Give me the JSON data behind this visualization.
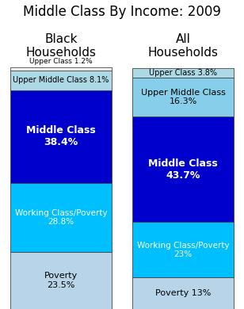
{
  "title": "Middle Class By Income: 2009",
  "col1_label": "Black\nHouseholds",
  "col2_label": "All\nHouseholds",
  "col1_segments": [
    {
      "label": "Poverty\n23.5%",
      "value": 23.5,
      "color": "#b8d4e8",
      "text_color": "#000000",
      "fontsize": 8,
      "bold": false
    },
    {
      "label": "Working Class/Poverty\n28.8%",
      "value": 28.8,
      "color": "#00bfff",
      "text_color": "#ffffff",
      "fontsize": 7.5,
      "bold": false
    },
    {
      "label": "Middle Class\n38.4%",
      "value": 38.4,
      "color": "#0000cc",
      "text_color": "#ffffff",
      "fontsize": 9,
      "bold": true
    },
    {
      "label": "Upper Middle Class 8.1%",
      "value": 8.1,
      "color": "#add8e6",
      "text_color": "#000000",
      "fontsize": 7,
      "bold": false
    },
    {
      "label": "Upper Class 1.2%",
      "value": 1.2,
      "color": "#ffffff",
      "text_color": "#000000",
      "fontsize": 6.5,
      "bold": false,
      "label_outside": true
    }
  ],
  "col2_segments": [
    {
      "label": "Poverty 13%",
      "value": 13.0,
      "color": "#b8d4e8",
      "text_color": "#000000",
      "fontsize": 8,
      "bold": false
    },
    {
      "label": "Working Class/Poverty\n23%",
      "value": 23.0,
      "color": "#00bfff",
      "text_color": "#ffffff",
      "fontsize": 7.5,
      "bold": false
    },
    {
      "label": "Middle Class\n43.7%",
      "value": 43.7,
      "color": "#0000cc",
      "text_color": "#ffffff",
      "fontsize": 9,
      "bold": true
    },
    {
      "label": "Upper Middle Class\n16.3%",
      "value": 16.3,
      "color": "#87ceeb",
      "text_color": "#000000",
      "fontsize": 8,
      "bold": false
    },
    {
      "label": "Upper Class 3.8%",
      "value": 3.8,
      "color": "#add8e6",
      "text_color": "#000000",
      "fontsize": 7,
      "bold": false
    }
  ],
  "background_color": "#ffffff",
  "title_fontsize": 12,
  "col_label_fontsize": 11,
  "total": 100
}
